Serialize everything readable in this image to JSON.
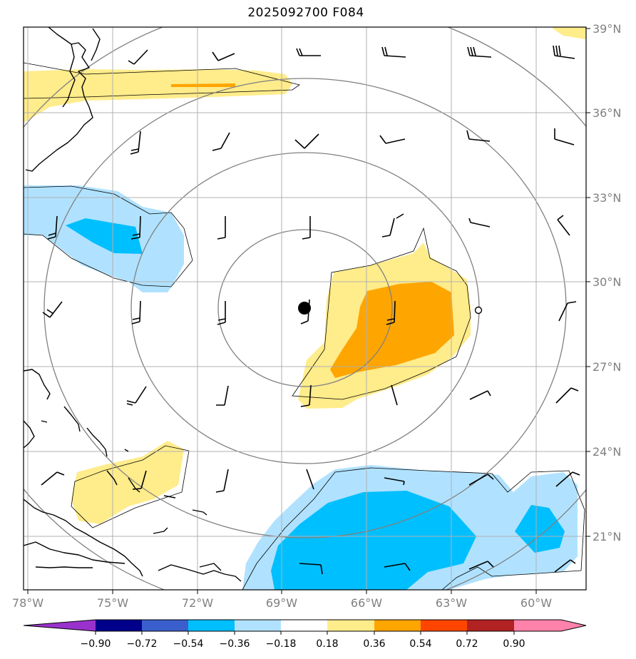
{
  "title": "2025092700 F084",
  "map": {
    "lon_range": [
      -78,
      -58
    ],
    "lat_range": [
      19,
      39
    ],
    "lon_ticks": [
      "78°W",
      "75°W",
      "72°W",
      "69°W",
      "66°W",
      "63°W",
      "60°W"
    ],
    "lat_ticks": [
      "39°N",
      "36°N",
      "33°N",
      "30°N",
      "27°N",
      "24°N",
      "21°N"
    ]
  },
  "colorbar": {
    "labels": [
      "−0.90",
      "−0.72",
      "−0.54",
      "−0.36",
      "−0.18",
      "0.18",
      "0.36",
      "0.54",
      "0.72",
      "0.90"
    ],
    "colors": [
      "#9932cc",
      "#00008b",
      "#3a5fcd",
      "#00bfff",
      "#b0e2ff",
      "#ffffff",
      "#ffec8b",
      "#ffa500",
      "#ff4500",
      "#b22222",
      "#ff82ab"
    ]
  },
  "center_marker": {
    "lon": -68.4,
    "lat": 29.1
  },
  "secondary_marker": {
    "lon": -62.1,
    "lat": 29.0
  }
}
